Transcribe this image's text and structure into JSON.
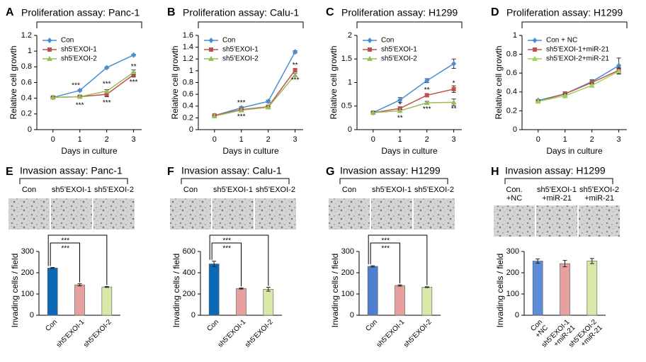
{
  "chart_data": [
    {
      "type": "line",
      "panel": "A",
      "title": "Proliferation assay: Panc-1",
      "ylabel": "Relative cell growth",
      "xlabel": "Days in culture",
      "x": [
        0,
        1,
        2,
        3
      ],
      "xlim": [
        -0.6,
        3.3
      ],
      "xticks": [
        0,
        1,
        2,
        3
      ],
      "ylim": [
        0,
        1.2
      ],
      "yticks": [
        0,
        0.2,
        0.4,
        0.6,
        0.8,
        1,
        1.2
      ],
      "series": [
        {
          "name": "Con",
          "color": "#4a8fd6",
          "marker": "diamond",
          "values": [
            0.41,
            0.5,
            0.79,
            0.95
          ],
          "errors": [
            0.01,
            0.01,
            0.01,
            0.01
          ]
        },
        {
          "name": "sh5'EXOI-1",
          "color": "#c0504d",
          "marker": "square",
          "values": [
            0.41,
            0.42,
            0.45,
            0.7
          ],
          "errors": [
            0.01,
            0.01,
            0.03,
            0.03
          ]
        },
        {
          "name": "sh5'EXOI-2",
          "color": "#9bbb59",
          "marker": "triangle",
          "values": [
            0.41,
            0.42,
            0.49,
            0.73
          ],
          "errors": [
            0.01,
            0.01,
            0.02,
            0.03
          ]
        }
      ],
      "annotations": [
        "***",
        "***",
        "***",
        "***",
        "**",
        "***"
      ]
    },
    {
      "type": "line",
      "panel": "B",
      "title": "Proliferation assay: Calu-1",
      "ylabel": "Relative cell growth",
      "xlabel": "Days in culture",
      "x": [
        0,
        1,
        2,
        3
      ],
      "xlim": [
        -0.6,
        3.3
      ],
      "xticks": [
        0,
        1,
        2,
        3
      ],
      "ylim": [
        0,
        1.6
      ],
      "yticks": [
        0,
        0.2,
        0.4,
        0.6,
        0.8,
        1,
        1.2,
        1.4,
        1.6
      ],
      "series": [
        {
          "name": "Con",
          "color": "#4a8fd6",
          "marker": "diamond",
          "values": [
            0.24,
            0.37,
            0.48,
            1.32
          ],
          "errors": [
            0.01,
            0.02,
            0.02,
            0.02
          ]
        },
        {
          "name": "sh5'EXOI-1",
          "color": "#c0504d",
          "marker": "square",
          "values": [
            0.24,
            0.34,
            0.39,
            1.01
          ],
          "errors": [
            0.01,
            0.01,
            0.02,
            0.03
          ]
        },
        {
          "name": "sh5'EXOI-2",
          "color": "#9bbb59",
          "marker": "triangle",
          "values": [
            0.23,
            0.33,
            0.38,
            0.93
          ],
          "errors": [
            0.01,
            0.01,
            0.02,
            0.03
          ]
        }
      ],
      "annotations": [
        "***",
        "***",
        "**",
        "***"
      ]
    },
    {
      "type": "line",
      "panel": "C",
      "title": "Proliferation assay: H1299",
      "ylabel": "Relative cell growth",
      "xlabel": "Days in culture",
      "x": [
        0,
        1,
        2,
        3
      ],
      "xlim": [
        -0.6,
        3.3
      ],
      "xticks": [
        0,
        1,
        2,
        3
      ],
      "ylim": [
        0,
        2
      ],
      "yticks": [
        0,
        0.5,
        1,
        1.5,
        2
      ],
      "series": [
        {
          "name": "Con",
          "color": "#4a8fd6",
          "marker": "diamond",
          "values": [
            0.36,
            0.63,
            1.04,
            1.4
          ],
          "errors": [
            0.02,
            0.05,
            0.04,
            0.1
          ]
        },
        {
          "name": "sh5'EXOI-1",
          "color": "#c0504d",
          "marker": "square",
          "values": [
            0.36,
            0.45,
            0.73,
            0.86
          ],
          "errors": [
            0.02,
            0.03,
            0.03,
            0.07
          ]
        },
        {
          "name": "sh5'EXOI-2",
          "color": "#9bbb59",
          "marker": "triangle",
          "values": [
            0.36,
            0.4,
            0.57,
            0.58
          ],
          "errors": [
            0.02,
            0.03,
            0.03,
            0.07
          ]
        }
      ],
      "annotations": [
        "*",
        "**",
        "**",
        "***",
        "*",
        "**"
      ]
    },
    {
      "type": "line",
      "panel": "D",
      "title": "Proliferation assay: H1299",
      "ylabel": "Relative cell growth",
      "xlabel": "Days in culture",
      "x": [
        0,
        1,
        2,
        3
      ],
      "xlim": [
        -0.6,
        3.3
      ],
      "xticks": [
        0,
        1,
        2,
        3
      ],
      "ylim": [
        0,
        1
      ],
      "yticks": [
        0,
        0.2,
        0.4,
        0.6,
        0.8,
        1
      ],
      "series": [
        {
          "name": "Con + NC",
          "color": "#4a8fd6",
          "marker": "diamond",
          "values": [
            0.31,
            0.38,
            0.51,
            0.68
          ],
          "errors": [
            0.01,
            0.02,
            0.02,
            0.08
          ]
        },
        {
          "name": "sh5'EXOI-1+miR-21",
          "color": "#c0504d",
          "marker": "square",
          "values": [
            0.3,
            0.38,
            0.5,
            0.63
          ],
          "errors": [
            0.01,
            0.02,
            0.02,
            0.03
          ]
        },
        {
          "name": "sh5'EXOI-2+miR-21",
          "color": "#9bd35a",
          "marker": "triangle",
          "values": [
            0.3,
            0.36,
            0.47,
            0.62
          ],
          "errors": [
            0.01,
            0.02,
            0.02,
            0.03
          ]
        }
      ],
      "annotations": []
    },
    {
      "type": "bar",
      "panel": "E",
      "title": "Invasion assay: Panc-1",
      "ylabel": "Invading cells / field",
      "image_labels": [
        [
          "Con"
        ],
        [
          "sh5'EXOI-1"
        ],
        [
          "sh5'EXOI-2"
        ]
      ],
      "categories": [
        [
          "Con"
        ],
        [
          "sh5'EXOI-1"
        ],
        [
          "sh5'EXOI-2"
        ]
      ],
      "values": [
        222,
        143,
        133
      ],
      "errors": [
        3,
        5,
        2
      ],
      "colors": [
        "#0b6ab8",
        "#e6a0a0",
        "#d7e8a8"
      ],
      "ylim": [
        0,
        300
      ],
      "yticks": [
        0,
        100,
        200,
        300
      ],
      "significance": [
        "***",
        "***"
      ]
    },
    {
      "type": "bar",
      "panel": "F",
      "title": "Invasion assay: Calu-1",
      "ylabel": "Invading cells / field",
      "image_labels": [
        [
          "Con"
        ],
        [
          "sh5'EXOI-1"
        ],
        [
          "sh5'EXOI-2"
        ]
      ],
      "categories": [
        [
          "Con"
        ],
        [
          "sh5'EXOI-1"
        ],
        [
          "sh5'EXOI-2"
        ]
      ],
      "values": [
        483,
        252,
        245
      ],
      "errors": [
        25,
        5,
        18
      ],
      "colors": [
        "#0b6ab8",
        "#e6a0a0",
        "#d7e8a8"
      ],
      "ylim": [
        0,
        600
      ],
      "yticks": [
        0,
        200,
        400,
        600
      ],
      "significance": [
        "***",
        "***"
      ]
    },
    {
      "type": "bar",
      "panel": "G",
      "title": "Invasion assay: H1299",
      "ylabel": "Invading cells / field",
      "image_labels": [
        [
          "Con"
        ],
        [
          "sh5'EXOI-1"
        ],
        [
          "sh5'EXOI-2"
        ]
      ],
      "categories": [
        [
          "Con"
        ],
        [
          "sh5'EXOI-1"
        ],
        [
          "sh5'EXOI-2"
        ]
      ],
      "values": [
        230,
        140,
        132
      ],
      "errors": [
        3,
        3,
        2
      ],
      "colors": [
        "#4f7fd1",
        "#e6a0a0",
        "#d7e8a8"
      ],
      "ylim": [
        0,
        300
      ],
      "yticks": [
        0,
        100,
        200,
        300
      ],
      "significance": [
        "***",
        "***"
      ]
    },
    {
      "type": "bar",
      "panel": "H",
      "title": "Invasion assay: H1299",
      "ylabel": "Invading cells / field",
      "image_labels": [
        [
          "Con.",
          "+NC"
        ],
        [
          "sh5'EXOI-1",
          "+miR-21"
        ],
        [
          "sh5'EXOI-2",
          "+miR-21"
        ]
      ],
      "categories": [
        [
          "Con",
          "+NC"
        ],
        [
          "sh5'EXOI-1",
          "+miR-21"
        ],
        [
          "sh5'EXOI-2",
          "+miR-21"
        ]
      ],
      "values": [
        255,
        243,
        255
      ],
      "errors": [
        10,
        15,
        12
      ],
      "colors": [
        "#5b8ed6",
        "#e6a0a0",
        "#d7e8a8"
      ],
      "ylim": [
        0,
        300
      ],
      "yticks": [
        0,
        100,
        200,
        300
      ],
      "significance": []
    }
  ]
}
